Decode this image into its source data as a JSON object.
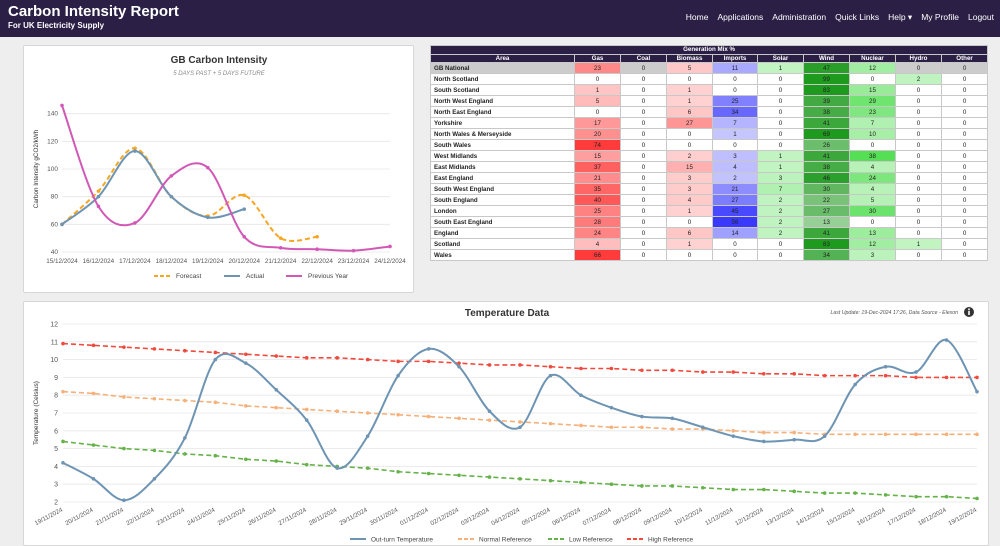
{
  "app": {
    "title": "Carbon Intensity Report",
    "subtitle": "For UK Electricity Supply"
  },
  "nav": {
    "items": [
      "Home",
      "Applications",
      "Administration",
      "Quick Links",
      "Help ▾",
      "My Profile",
      "Logout"
    ]
  },
  "carbon_chart": {
    "chart_data": {
      "type": "line",
      "title": "GB Carbon Intensity",
      "subtitle": "5 DAYS PAST + 5 DAYS FUTURE",
      "ylabel": "Carbon Intensity gCO2/kWh",
      "xlabel": "",
      "ylim": [
        40,
        160
      ],
      "yticks": [
        40,
        60,
        80,
        100,
        120,
        140
      ],
      "categories": [
        "15/12/2024",
        "16/12/2024",
        "17/12/2024",
        "18/12/2024",
        "19/12/2024",
        "20/12/2024",
        "21/12/2024",
        "22/12/2024",
        "23/12/2024",
        "24/12/2024"
      ],
      "legend_position": "bottom",
      "series": [
        {
          "name": "Forecast",
          "color": "#f5a623",
          "dash": true,
          "x": [
            0,
            1,
            2,
            3,
            4,
            5,
            6,
            7
          ],
          "values": [
            60,
            84,
            115,
            80,
            66,
            81,
            50,
            51
          ]
        },
        {
          "name": "Actual",
          "color": "#6e94b4",
          "dash": false,
          "x": [
            0,
            1,
            2,
            3,
            4,
            5
          ],
          "values": [
            60,
            80,
            113,
            80,
            65,
            71
          ]
        },
        {
          "name": "Previous Year",
          "color": "#d159b5",
          "dash": false,
          "x": [
            0,
            1,
            2,
            3,
            4,
            5,
            6,
            7,
            8,
            9
          ],
          "values": [
            146,
            73,
            61,
            95,
            101,
            51,
            43,
            42,
            41,
            44
          ]
        }
      ]
    }
  },
  "generation": {
    "title": "Generation Mix %",
    "columns": [
      "Area",
      "Gas",
      "Coal",
      "Biomass",
      "Imports",
      "Solar",
      "Wind",
      "Nuclear",
      "Hydro",
      "Other"
    ],
    "colors": {
      "gas": "#ff3b3b",
      "biomass": "#ff6262",
      "imports": "#3a3aff",
      "solar": "#2fd82f",
      "wind": "#1e9a1e",
      "nuclear": "#2fd82f",
      "hydro": "#2fd82f"
    },
    "rows": [
      {
        "area": "GB National",
        "v": [
          "23",
          "0",
          "5",
          "11",
          "1",
          "47",
          "12",
          "0",
          "0"
        ]
      },
      {
        "area": "North Scotland",
        "v": [
          "0",
          "0",
          "0",
          "0",
          "0",
          "99",
          "0",
          "2",
          "0"
        ]
      },
      {
        "area": "South Scotland",
        "v": [
          "1",
          "0",
          "1",
          "0",
          "0",
          "83",
          "15",
          "0",
          "0"
        ]
      },
      {
        "area": "North West England",
        "v": [
          "5",
          "0",
          "1",
          "25",
          "0",
          "39",
          "29",
          "0",
          "0"
        ]
      },
      {
        "area": "North East England",
        "v": [
          "0",
          "0",
          "6",
          "34",
          "0",
          "38",
          "23",
          "0",
          "0"
        ]
      },
      {
        "area": "Yorkshire",
        "v": [
          "17",
          "0",
          "27",
          "7",
          "0",
          "41",
          "7",
          "0",
          "0"
        ]
      },
      {
        "area": "North Wales & Merseyside",
        "v": [
          "20",
          "0",
          "0",
          "1",
          "0",
          "69",
          "10",
          "0",
          "0"
        ]
      },
      {
        "area": "South Wales",
        "v": [
          "74",
          "0",
          "0",
          "0",
          "0",
          "26",
          "0",
          "0",
          "0"
        ]
      },
      {
        "area": "West Midlands",
        "v": [
          "15",
          "0",
          "2",
          "3",
          "1",
          "41",
          "38",
          "0",
          "0"
        ]
      },
      {
        "area": "East Midlands",
        "v": [
          "37",
          "0",
          "15",
          "4",
          "1",
          "38",
          "4",
          "0",
          "0"
        ]
      },
      {
        "area": "East England",
        "v": [
          "21",
          "0",
          "3",
          "2",
          "3",
          "46",
          "24",
          "0",
          "0"
        ]
      },
      {
        "area": "South West England",
        "v": [
          "35",
          "0",
          "3",
          "21",
          "7",
          "30",
          "4",
          "0",
          "0"
        ]
      },
      {
        "area": "South England",
        "v": [
          "40",
          "0",
          "4",
          "27",
          "2",
          "22",
          "5",
          "0",
          "0"
        ]
      },
      {
        "area": "London",
        "v": [
          "25",
          "0",
          "1",
          "45",
          "2",
          "27",
          "30",
          "0",
          "0"
        ]
      },
      {
        "area": "South East England",
        "v": [
          "28",
          "0",
          "0",
          "56",
          "2",
          "13",
          "0",
          "0",
          "0"
        ]
      },
      {
        "area": "England",
        "v": [
          "24",
          "0",
          "6",
          "14",
          "2",
          "41",
          "13",
          "0",
          "0"
        ]
      },
      {
        "area": "Scotland",
        "v": [
          "4",
          "0",
          "1",
          "0",
          "0",
          "83",
          "12",
          "1",
          "0"
        ]
      },
      {
        "area": "Wales",
        "v": [
          "66",
          "0",
          "0",
          "0",
          "0",
          "34",
          "3",
          "0",
          "0"
        ]
      }
    ]
  },
  "temperature_chart": {
    "last_update": "Last Update: 19-Dec-2024 17:26, Data Source - Elexon",
    "chart_data": {
      "type": "line",
      "title": "Temperature Data",
      "ylabel": "Temperature (Celsius)",
      "xlabel": "",
      "ylim": [
        2,
        12
      ],
      "yticks": [
        2,
        3,
        4,
        5,
        6,
        7,
        8,
        9,
        10,
        11,
        12
      ],
      "categories": [
        "19/11/2024",
        "20/11/2024",
        "21/11/2024",
        "22/11/2024",
        "23/11/2024",
        "24/11/2024",
        "25/11/2024",
        "26/11/2024",
        "27/11/2024",
        "28/11/2024",
        "29/11/2024",
        "30/11/2024",
        "01/12/2024",
        "02/12/2024",
        "03/12/2024",
        "04/12/2024",
        "05/12/2024",
        "06/12/2024",
        "07/12/2024",
        "08/12/2024",
        "09/12/2024",
        "10/12/2024",
        "11/12/2024",
        "12/12/2024",
        "13/12/2024",
        "14/12/2024",
        "15/12/2024",
        "16/12/2024",
        "17/12/2024",
        "18/12/2024",
        "19/12/2024"
      ],
      "legend_position": "bottom",
      "series": [
        {
          "name": "Out-turn Temperature",
          "color": "#6e94b4",
          "dash": false,
          "smooth": true,
          "values": [
            4.2,
            3.3,
            2.1,
            3.3,
            5.6,
            10.0,
            9.8,
            8.3,
            6.6,
            3.9,
            5.7,
            9.1,
            10.6,
            9.6,
            7.1,
            6.2,
            9.1,
            8.0,
            7.3,
            6.8,
            6.7,
            6.2,
            5.7,
            5.4,
            5.5,
            5.7,
            8.6,
            9.6,
            9.3,
            11.1,
            8.2
          ]
        },
        {
          "name": "Normal Reference",
          "color": "#f6b07a",
          "dash": true,
          "smooth": false,
          "values": [
            8.2,
            8.1,
            7.9,
            7.8,
            7.7,
            7.6,
            7.4,
            7.3,
            7.2,
            7.1,
            7.0,
            6.9,
            6.8,
            6.7,
            6.6,
            6.5,
            6.4,
            6.3,
            6.2,
            6.2,
            6.1,
            6.1,
            6.0,
            5.9,
            5.9,
            5.8,
            5.8,
            5.8,
            5.8,
            5.8,
            5.8
          ]
        },
        {
          "name": "Low Reference",
          "color": "#66b24a",
          "dash": true,
          "smooth": false,
          "values": [
            5.4,
            5.2,
            5.0,
            4.9,
            4.7,
            4.6,
            4.4,
            4.3,
            4.1,
            4.0,
            3.9,
            3.7,
            3.6,
            3.5,
            3.4,
            3.3,
            3.2,
            3.1,
            3.0,
            2.9,
            2.9,
            2.8,
            2.7,
            2.7,
            2.6,
            2.5,
            2.5,
            2.4,
            2.3,
            2.3,
            2.2
          ]
        },
        {
          "name": "High Reference",
          "color": "#ee4b3e",
          "dash": true,
          "smooth": false,
          "values": [
            10.9,
            10.8,
            10.7,
            10.6,
            10.5,
            10.4,
            10.3,
            10.2,
            10.1,
            10.1,
            10.0,
            9.9,
            9.9,
            9.8,
            9.7,
            9.7,
            9.6,
            9.5,
            9.5,
            9.4,
            9.4,
            9.3,
            9.3,
            9.2,
            9.2,
            9.1,
            9.1,
            9.1,
            9.0,
            9.0,
            9.0
          ]
        }
      ]
    }
  }
}
